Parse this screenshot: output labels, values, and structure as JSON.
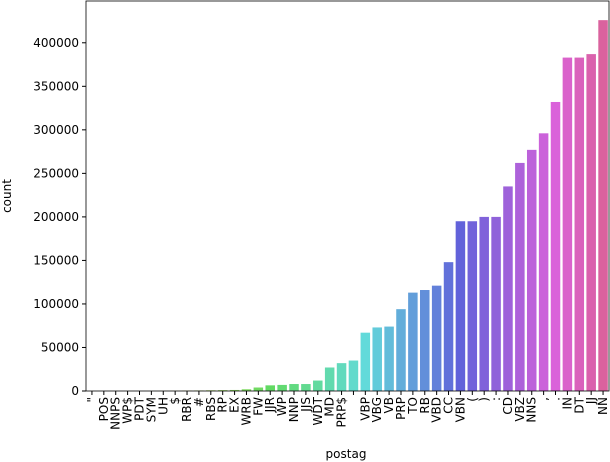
{
  "chart_data": {
    "type": "bar",
    "x_label": "postag",
    "y_label": "count",
    "categories": [
      "\"",
      "POS",
      "NNPS",
      "WP$",
      "PDT",
      "SYM",
      "UH",
      "$",
      "RBR",
      "#",
      "RBS",
      "RP",
      "EX",
      "WRB",
      "FW",
      "JJR",
      "WP",
      "NNP",
      "JJS",
      "WDT",
      "MD",
      "PRP$",
      null,
      "VBP",
      "VBG",
      "VB",
      "PRP",
      "TO",
      "RB",
      "VBD",
      "CC",
      "VBN",
      "(",
      ")",
      ":",
      "CD",
      "VBZ",
      "NNS",
      ",",
      ".",
      "IN",
      "DT",
      "JJ",
      "NN"
    ],
    "values": [
      0,
      0,
      0,
      0,
      0,
      0,
      100,
      200,
      400,
      600,
      800,
      1000,
      1200,
      2000,
      4000,
      6500,
      7000,
      8000,
      8000,
      12000,
      27000,
      32000,
      35000,
      67000,
      73000,
      74000,
      94000,
      113000,
      116000,
      121000,
      148000,
      195000,
      195000,
      200000,
      200000,
      235000,
      262000,
      277000,
      296000,
      332000,
      383000,
      383000,
      387000,
      426000
    ],
    "palette": "husl",
    "ylim": [
      0,
      448000
    ],
    "yticks": [
      0,
      50000,
      100000,
      150000,
      200000,
      250000,
      300000,
      350000,
      400000
    ],
    "grid": false
  }
}
